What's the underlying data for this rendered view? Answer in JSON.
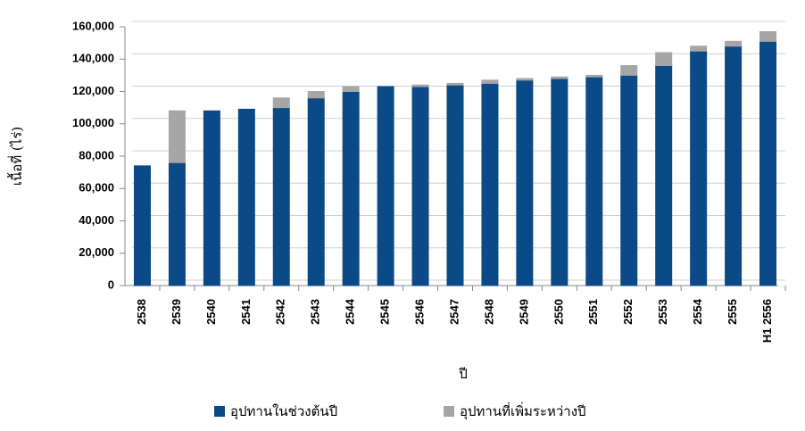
{
  "chart_data": {
    "type": "stacked-bar",
    "y_label": "เนื้อที่ (ไร่)",
    "x_label": "ปี",
    "categories": [
      "2538",
      "2539",
      "2540",
      "2541",
      "2542",
      "2543",
      "2544",
      "2545",
      "2546",
      "2547",
      "2548",
      "2549",
      "2550",
      "2551",
      "2552",
      "2553",
      "2554",
      "2555",
      "H1 2556"
    ],
    "series": [
      {
        "name": "อุปทานในช่วงต้นปี",
        "color": "#0b4a86",
        "values": [
          74000,
          76000,
          108000,
          109000,
          110000,
          116000,
          120000,
          123000,
          123000,
          124000,
          125000,
          127000,
          128000,
          129000,
          130000,
          136000,
          145000,
          148000,
          151000
        ]
      },
      {
        "name": "อุปทานที่เพิ่มระหว่างปี",
        "color": "#a6a6a6",
        "values": [
          0,
          32000,
          0,
          0,
          6000,
          4000,
          3000,
          0,
          1000,
          1000,
          2000,
          1000,
          1000,
          1000,
          6000,
          8000,
          3000,
          3000,
          6000
        ]
      }
    ],
    "ylim": [
      0,
      160000
    ],
    "yticks": [
      0,
      {
        "value": 20000,
        "label": "20,000"
      },
      {
        "value": 40000,
        "label": "40,000"
      },
      {
        "value": 60000,
        "label": "60,000"
      },
      {
        "value": 80000,
        "label": "80,000"
      },
      {
        "value": 100000,
        "label": "100,000"
      },
      {
        "value": 120000,
        "label": "120,000"
      },
      {
        "value": 140000,
        "label": "140,000"
      },
      {
        "value": 160000,
        "label": "160,000"
      }
    ],
    "grid": true
  }
}
